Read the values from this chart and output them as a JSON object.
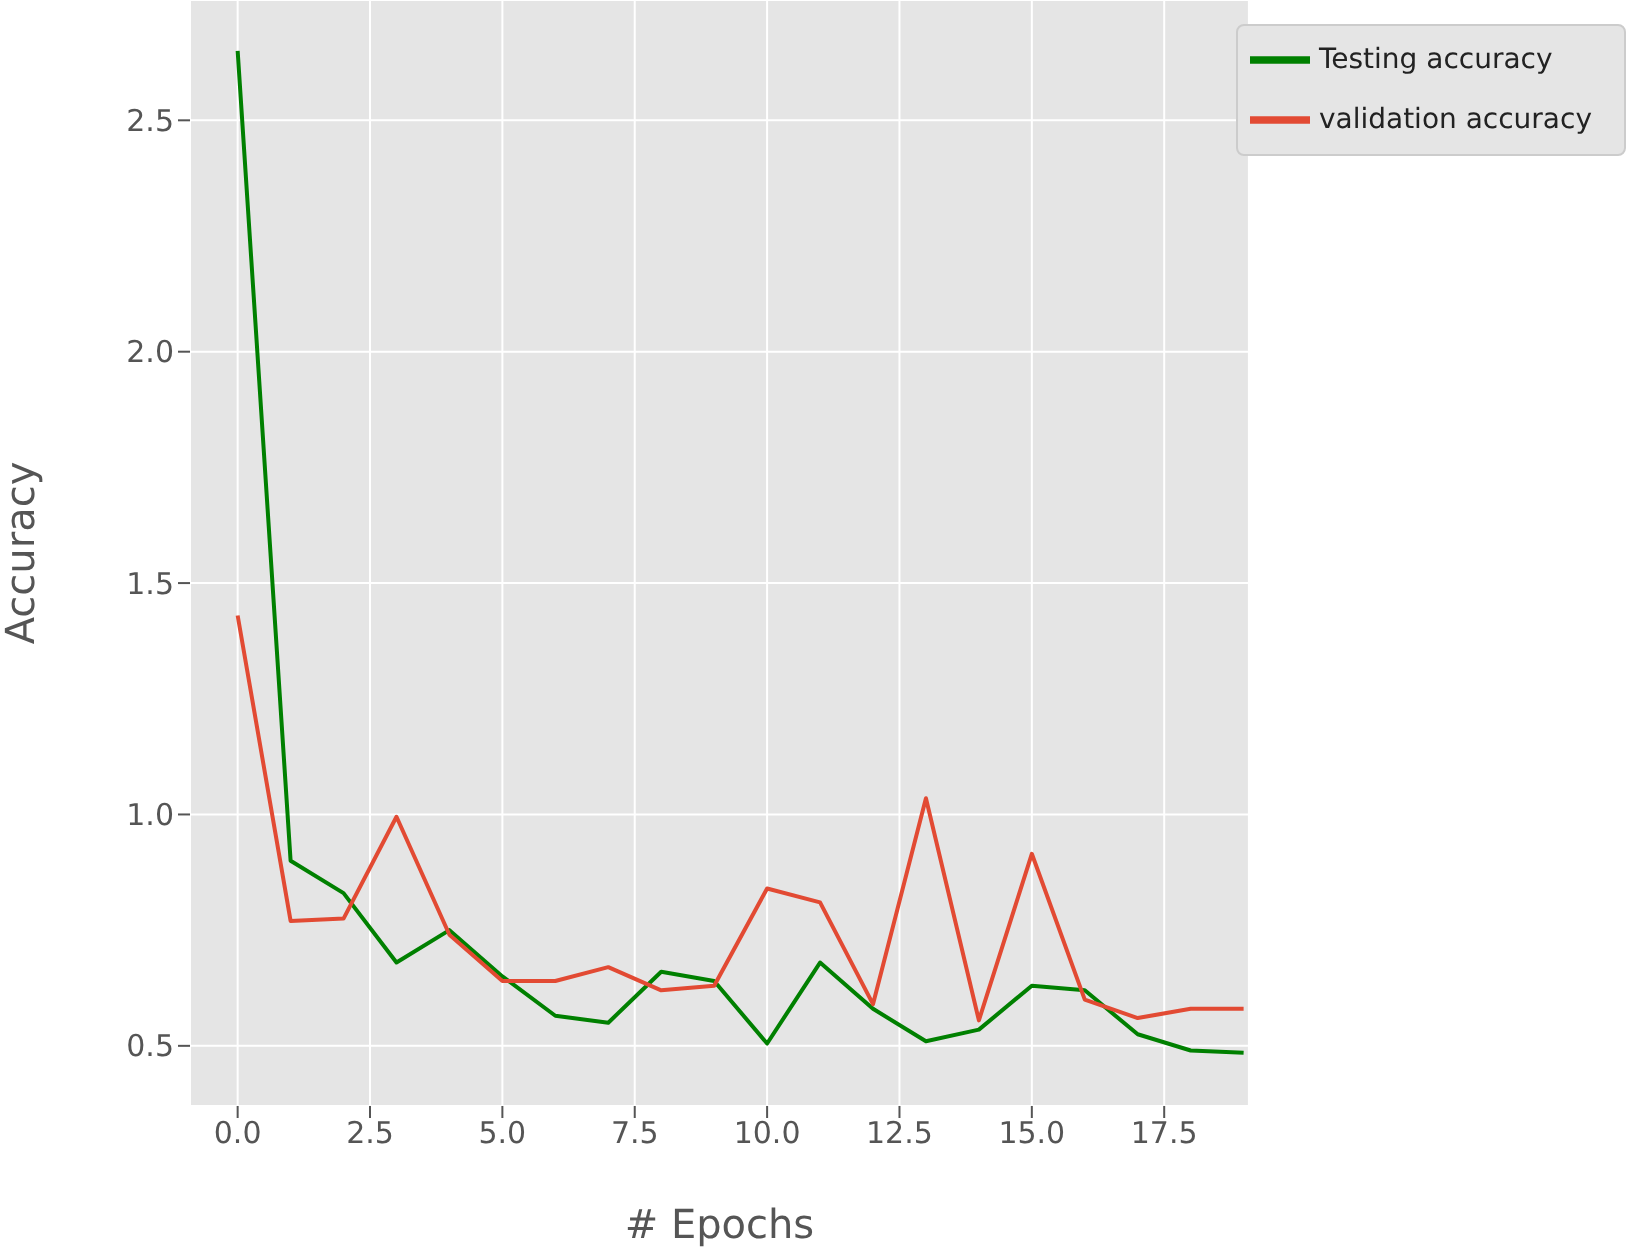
{
  "chart_data": {
    "type": "line",
    "xlabel": "# Epochs",
    "ylabel": "Accuracy",
    "x": [
      0,
      1,
      2,
      3,
      4,
      5,
      6,
      7,
      8,
      9,
      10,
      11,
      12,
      13,
      14,
      15,
      16,
      17,
      18,
      19
    ],
    "series": [
      {
        "name": "Testing accuracy",
        "color": "#008000",
        "values": [
          2.65,
          0.9,
          0.83,
          0.68,
          0.75,
          0.65,
          0.565,
          0.55,
          0.66,
          0.64,
          0.505,
          0.68,
          0.58,
          0.51,
          0.535,
          0.63,
          0.62,
          0.525,
          0.49,
          0.485
        ]
      },
      {
        "name": "validation accuracy",
        "color": "#e24a33",
        "values": [
          1.43,
          0.77,
          0.775,
          0.995,
          0.74,
          0.64,
          0.64,
          0.67,
          0.62,
          0.63,
          0.84,
          0.81,
          0.59,
          1.035,
          0.555,
          0.915,
          0.6,
          0.56,
          0.58,
          0.58
        ]
      }
    ],
    "xlim": [
      -0.9,
      19.1
    ],
    "xticks": [
      {
        "value": 0,
        "label": "0.0"
      },
      2.5,
      {
        "value": 5,
        "label": "5.0"
      },
      7.5,
      {
        "value": 10,
        "label": "10.0"
      },
      12.5,
      {
        "value": 15,
        "label": "15.0"
      },
      17.5
    ],
    "ylim": [
      0.37,
      2.76
    ],
    "yticks": [
      0.5,
      {
        "value": 1,
        "label": "1.0"
      },
      1.5,
      {
        "value": 2,
        "label": "2.0"
      },
      2.5
    ],
    "grid": true,
    "legend": "top right",
    "marker": "none",
    "line_style": "solid"
  }
}
